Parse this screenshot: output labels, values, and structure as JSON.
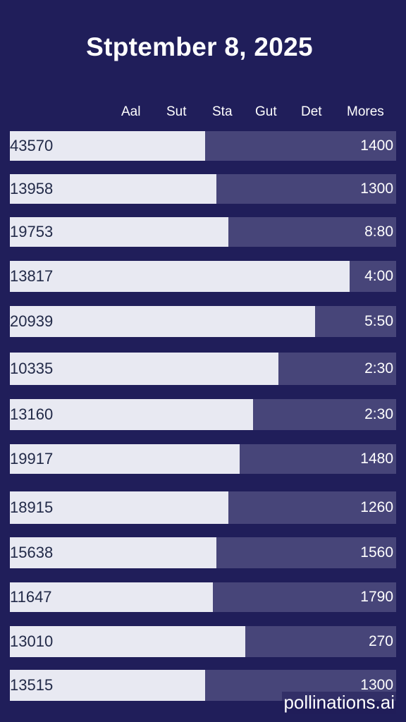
{
  "title": "Stptember 8, 2025",
  "watermark": "pollinations.ai",
  "colors": {
    "background": "#201e5a",
    "bar_track": "#474579",
    "bar_fill": "#e8e9f2",
    "id_text": "#222a48"
  },
  "chart_data": {
    "type": "bar",
    "orientation": "horizontal",
    "title": "Stptember 8, 2025",
    "column_headers": [
      "Aal",
      "Sut",
      "Sta",
      "Gut",
      "Det",
      "Mores"
    ],
    "xlim": [
      0,
      1
    ],
    "categories": [
      "43570",
      "13958",
      "19753",
      "13817",
      "20939",
      "10335",
      "13160",
      "19917",
      "18915",
      "15638",
      "11647",
      "13010",
      "13515"
    ],
    "values": [
      0.505,
      0.535,
      0.565,
      0.88,
      0.79,
      0.695,
      0.63,
      0.595,
      0.565,
      0.535,
      0.525,
      0.61,
      0.505
    ],
    "value_labels": [
      "1400",
      "1300",
      "8:80",
      "4:00",
      "5:50",
      "2:30",
      "2:30",
      "1480",
      "1260",
      "1560",
      "1790",
      "270",
      "1300"
    ]
  }
}
